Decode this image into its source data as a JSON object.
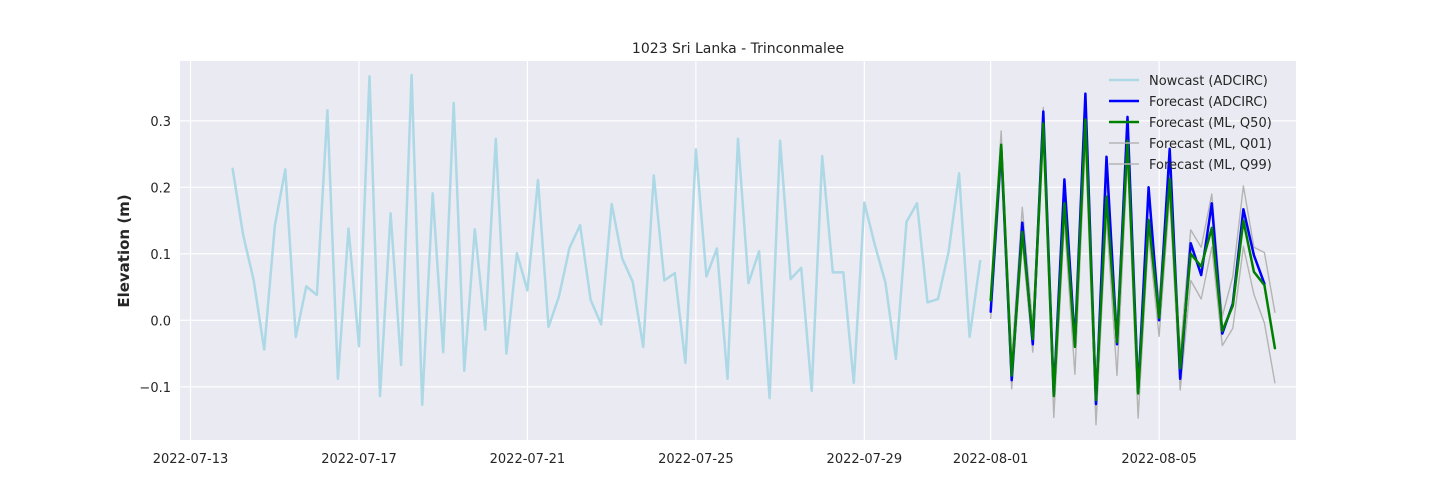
{
  "chart_data": {
    "type": "line",
    "title": "1023 Sri Lanka - Trinconmalee",
    "xlabel": "",
    "ylabel": "Elevation (m)",
    "xlim": [
      "2022-07-12 18:00",
      "2022-08-08 06:00"
    ],
    "ylim": [
      -0.18,
      0.39
    ],
    "grid": true,
    "legend_position": "top-right",
    "x_ticks": [
      {
        "date": "2022-07-13 00:00",
        "label": "2022-07-13"
      },
      {
        "date": "2022-07-17 00:00",
        "label": "2022-07-17"
      },
      {
        "date": "2022-07-21 00:00",
        "label": "2022-07-21"
      },
      {
        "date": "2022-07-25 00:00",
        "label": "2022-07-25"
      },
      {
        "date": "2022-07-29 00:00",
        "label": "2022-07-29"
      },
      {
        "date": "2022-08-01 00:00",
        "label": "2022-08-01"
      },
      {
        "date": "2022-08-05 00:00",
        "label": "2022-08-05"
      }
    ],
    "y_ticks": [
      {
        "value": -0.1,
        "label": "−0.1"
      },
      {
        "value": 0.0,
        "label": "0.0"
      },
      {
        "value": 0.1,
        "label": "0.1"
      },
      {
        "value": 0.2,
        "label": "0.2"
      },
      {
        "value": 0.3,
        "label": "0.3"
      }
    ],
    "series": [
      {
        "name": "Nowcast (ADCIRC)",
        "color": "#add8e6",
        "width": 2.5,
        "x": [
          "2022-07-14 00:00",
          "2022-07-14 06:00",
          "2022-07-14 12:00",
          "2022-07-14 18:00",
          "2022-07-15 00:00",
          "2022-07-15 06:00",
          "2022-07-15 12:00",
          "2022-07-15 18:00",
          "2022-07-16 00:00",
          "2022-07-16 06:00",
          "2022-07-16 12:00",
          "2022-07-16 18:00",
          "2022-07-17 00:00",
          "2022-07-17 06:00",
          "2022-07-17 12:00",
          "2022-07-17 18:00",
          "2022-07-18 00:00",
          "2022-07-18 06:00",
          "2022-07-18 12:00",
          "2022-07-18 18:00",
          "2022-07-19 00:00",
          "2022-07-19 06:00",
          "2022-07-19 12:00",
          "2022-07-19 18:00",
          "2022-07-20 00:00",
          "2022-07-20 06:00",
          "2022-07-20 12:00",
          "2022-07-20 18:00",
          "2022-07-21 00:00",
          "2022-07-21 06:00",
          "2022-07-21 12:00",
          "2022-07-21 18:00",
          "2022-07-22 00:00",
          "2022-07-22 06:00",
          "2022-07-22 12:00",
          "2022-07-22 18:00",
          "2022-07-23 00:00",
          "2022-07-23 06:00",
          "2022-07-23 12:00",
          "2022-07-23 18:00",
          "2022-07-24 00:00",
          "2022-07-24 06:00",
          "2022-07-24 12:00",
          "2022-07-24 18:00",
          "2022-07-25 00:00",
          "2022-07-25 06:00",
          "2022-07-25 12:00",
          "2022-07-25 18:00",
          "2022-07-26 00:00",
          "2022-07-26 06:00",
          "2022-07-26 12:00",
          "2022-07-26 18:00",
          "2022-07-27 00:00",
          "2022-07-27 06:00",
          "2022-07-27 12:00",
          "2022-07-27 18:00",
          "2022-07-28 00:00",
          "2022-07-28 06:00",
          "2022-07-28 12:00",
          "2022-07-28 18:00",
          "2022-07-29 00:00",
          "2022-07-29 06:00",
          "2022-07-29 12:00",
          "2022-07-29 18:00",
          "2022-07-30 00:00",
          "2022-07-30 06:00",
          "2022-07-30 12:00",
          "2022-07-30 18:00",
          "2022-07-31 00:00",
          "2022-07-31 06:00",
          "2022-07-31 12:00",
          "2022-07-31 18:00"
        ],
        "values": [
          0.228,
          0.128,
          0.06,
          -0.044,
          0.142,
          0.227,
          -0.025,
          0.051,
          0.038,
          0.316,
          -0.088,
          0.138,
          -0.039,
          0.367,
          -0.114,
          0.161,
          -0.067,
          0.369,
          -0.127,
          0.191,
          -0.048,
          0.327,
          -0.076,
          0.137,
          -0.014,
          0.273,
          -0.05,
          0.101,
          0.045,
          0.211,
          -0.01,
          0.036,
          0.109,
          0.143,
          0.031,
          -0.006,
          0.175,
          0.093,
          0.058,
          -0.04,
          0.218,
          0.06,
          0.071,
          -0.064,
          0.257,
          0.066,
          0.108,
          -0.088,
          0.273,
          0.056,
          0.104,
          -0.117,
          0.27,
          0.062,
          0.079,
          -0.106,
          0.247,
          0.072,
          0.072,
          -0.094,
          0.177,
          0.113,
          0.057,
          -0.058,
          0.148,
          0.176,
          0.027,
          0.032,
          0.103,
          0.221,
          -0.025,
          0.089
        ]
      },
      {
        "name": "Forecast (ADCIRC)",
        "color": "#0000ff",
        "width": 2.5,
        "x": [
          "2022-08-01 00:00",
          "2022-08-01 06:00",
          "2022-08-01 12:00",
          "2022-08-01 18:00",
          "2022-08-02 00:00",
          "2022-08-02 06:00",
          "2022-08-02 12:00",
          "2022-08-02 18:00",
          "2022-08-03 00:00",
          "2022-08-03 06:00",
          "2022-08-03 12:00",
          "2022-08-03 18:00",
          "2022-08-04 00:00",
          "2022-08-04 06:00",
          "2022-08-04 12:00",
          "2022-08-04 18:00",
          "2022-08-05 00:00",
          "2022-08-05 06:00",
          "2022-08-05 12:00",
          "2022-08-05 18:00",
          "2022-08-06 00:00",
          "2022-08-06 06:00",
          "2022-08-06 12:00",
          "2022-08-06 18:00",
          "2022-08-07 00:00",
          "2022-08-07 06:00",
          "2022-08-07 12:00"
        ],
        "values": [
          0.013,
          0.26,
          -0.09,
          0.147,
          -0.036,
          0.314,
          -0.112,
          0.212,
          -0.036,
          0.341,
          -0.126,
          0.246,
          -0.036,
          0.306,
          -0.108,
          0.2,
          0.0,
          0.258,
          -0.088,
          0.116,
          0.068,
          0.176,
          -0.02,
          0.025,
          0.167,
          0.098,
          0.055
        ]
      },
      {
        "name": "Forecast (ML, Q50)",
        "color": "#008000",
        "width": 2.5,
        "x": [
          "2022-08-01 00:00",
          "2022-08-01 06:00",
          "2022-08-01 12:00",
          "2022-08-01 18:00",
          "2022-08-02 00:00",
          "2022-08-02 06:00",
          "2022-08-02 12:00",
          "2022-08-02 18:00",
          "2022-08-03 00:00",
          "2022-08-03 06:00",
          "2022-08-03 12:00",
          "2022-08-03 18:00",
          "2022-08-04 00:00",
          "2022-08-04 06:00",
          "2022-08-04 12:00",
          "2022-08-04 18:00",
          "2022-08-05 00:00",
          "2022-08-05 06:00",
          "2022-08-05 12:00",
          "2022-08-05 18:00",
          "2022-08-06 00:00",
          "2022-08-06 06:00",
          "2022-08-06 12:00",
          "2022-08-06 18:00",
          "2022-08-07 00:00",
          "2022-08-07 06:00",
          "2022-08-07 12:00",
          "2022-08-07 18:00"
        ],
        "values": [
          0.03,
          0.264,
          -0.083,
          0.133,
          -0.028,
          0.296,
          -0.114,
          0.176,
          -0.04,
          0.302,
          -0.12,
          0.186,
          -0.033,
          0.27,
          -0.11,
          0.151,
          0.004,
          0.213,
          -0.072,
          0.1,
          0.081,
          0.139,
          -0.016,
          0.022,
          0.15,
          0.073,
          0.053,
          -0.042
        ]
      },
      {
        "name": "Forecast (ML, Q01)",
        "color": "#b4b4b4",
        "width": 1.4,
        "x": [
          "2022-08-01 00:00",
          "2022-08-01 06:00",
          "2022-08-01 12:00",
          "2022-08-01 18:00",
          "2022-08-02 00:00",
          "2022-08-02 06:00",
          "2022-08-02 12:00",
          "2022-08-02 18:00",
          "2022-08-03 00:00",
          "2022-08-03 06:00",
          "2022-08-03 12:00",
          "2022-08-03 18:00",
          "2022-08-04 00:00",
          "2022-08-04 06:00",
          "2022-08-04 12:00",
          "2022-08-04 18:00",
          "2022-08-05 00:00",
          "2022-08-05 06:00",
          "2022-08-05 12:00",
          "2022-08-05 18:00",
          "2022-08-06 00:00",
          "2022-08-06 06:00",
          "2022-08-06 12:00",
          "2022-08-06 18:00",
          "2022-08-07 00:00",
          "2022-08-07 06:00",
          "2022-08-07 12:00",
          "2022-08-07 18:00"
        ],
        "values": [
          0.003,
          0.235,
          -0.103,
          0.116,
          -0.048,
          0.276,
          -0.146,
          0.148,
          -0.081,
          0.268,
          -0.157,
          0.155,
          -0.083,
          0.241,
          -0.147,
          0.126,
          -0.024,
          0.186,
          -0.105,
          0.06,
          0.032,
          0.11,
          -0.038,
          -0.012,
          0.111,
          0.039,
          -0.004,
          -0.094
        ]
      },
      {
        "name": "Forecast (ML, Q99)",
        "color": "#b4b4b4",
        "width": 1.4,
        "x": [
          "2022-08-01 00:00",
          "2022-08-01 06:00",
          "2022-08-01 12:00",
          "2022-08-01 18:00",
          "2022-08-02 00:00",
          "2022-08-02 06:00",
          "2022-08-02 12:00",
          "2022-08-02 18:00",
          "2022-08-03 00:00",
          "2022-08-03 06:00",
          "2022-08-03 12:00",
          "2022-08-03 18:00",
          "2022-08-04 00:00",
          "2022-08-04 06:00",
          "2022-08-04 12:00",
          "2022-08-04 18:00",
          "2022-08-05 00:00",
          "2022-08-05 06:00",
          "2022-08-05 12:00",
          "2022-08-05 18:00",
          "2022-08-06 00:00",
          "2022-08-06 06:00",
          "2022-08-06 12:00",
          "2022-08-06 18:00",
          "2022-08-07 00:00",
          "2022-08-07 06:00",
          "2022-08-07 12:00",
          "2022-08-07 18:00"
        ],
        "values": [
          0.045,
          0.285,
          -0.06,
          0.17,
          -0.01,
          0.32,
          -0.095,
          0.203,
          -0.017,
          0.325,
          -0.1,
          0.21,
          -0.01,
          0.297,
          -0.09,
          0.178,
          0.03,
          0.24,
          -0.05,
          0.136,
          0.11,
          0.19,
          0.006,
          0.066,
          0.202,
          0.11,
          0.102,
          0.012
        ]
      }
    ]
  }
}
